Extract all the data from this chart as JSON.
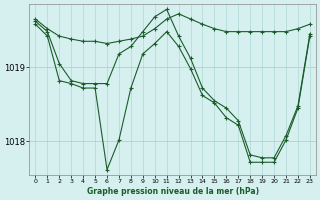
{
  "title": "Graphe pression niveau de la mer (hPa)",
  "background_color": "#d6f0f0",
  "grid_color_v": "#b0d8d8",
  "grid_color_h": "#c0c0c0",
  "line_color": "#1a5c2a",
  "xlim": [
    -0.5,
    23.5
  ],
  "ylim": [
    1017.55,
    1019.85
  ],
  "yticks": [
    1018,
    1019
  ],
  "xticks": [
    0,
    1,
    2,
    3,
    4,
    5,
    6,
    7,
    8,
    9,
    10,
    11,
    12,
    13,
    14,
    15,
    16,
    17,
    18,
    19,
    20,
    21,
    22,
    23
  ],
  "series": [
    {
      "x": [
        0,
        1,
        2,
        3,
        4,
        5,
        6,
        7,
        8,
        9,
        10,
        11,
        12,
        13,
        14,
        15,
        16,
        17,
        18,
        19,
        20,
        21,
        22,
        23
      ],
      "y": [
        1019.65,
        1019.52,
        1019.42,
        1019.38,
        1019.35,
        1019.35,
        1019.32,
        1019.35,
        1019.38,
        1019.42,
        1019.52,
        1019.65,
        1019.72,
        1019.65,
        1019.58,
        1019.52,
        1019.48,
        1019.48,
        1019.48,
        1019.48,
        1019.48,
        1019.48,
        1019.52,
        1019.58
      ]
    },
    {
      "x": [
        0,
        1,
        2,
        3,
        4,
        5,
        6,
        7,
        8,
        9,
        10,
        11,
        12,
        13,
        14,
        15,
        16,
        17,
        18,
        19,
        20,
        21,
        22,
        23
      ],
      "y": [
        1019.62,
        1019.48,
        1019.05,
        1018.82,
        1018.78,
        1018.78,
        1018.78,
        1019.18,
        1019.28,
        1019.48,
        1019.68,
        1019.78,
        1019.42,
        1019.12,
        1018.72,
        1018.55,
        1018.45,
        1018.28,
        1017.82,
        1017.78,
        1017.78,
        1018.08,
        1018.48,
        1019.45
      ]
    },
    {
      "x": [
        0,
        1,
        2,
        3,
        4,
        5,
        6,
        7,
        8,
        9,
        10,
        11,
        12,
        13,
        14,
        15,
        16,
        17,
        18,
        19,
        20,
        21,
        22,
        23
      ],
      "y": [
        1019.58,
        1019.42,
        1018.82,
        1018.78,
        1018.72,
        1018.72,
        1017.62,
        1018.02,
        1018.72,
        1019.18,
        1019.32,
        1019.48,
        1019.28,
        1018.98,
        1018.62,
        1018.52,
        1018.32,
        1018.22,
        1017.72,
        1017.72,
        1017.72,
        1018.02,
        1018.45,
        1019.42
      ]
    }
  ]
}
